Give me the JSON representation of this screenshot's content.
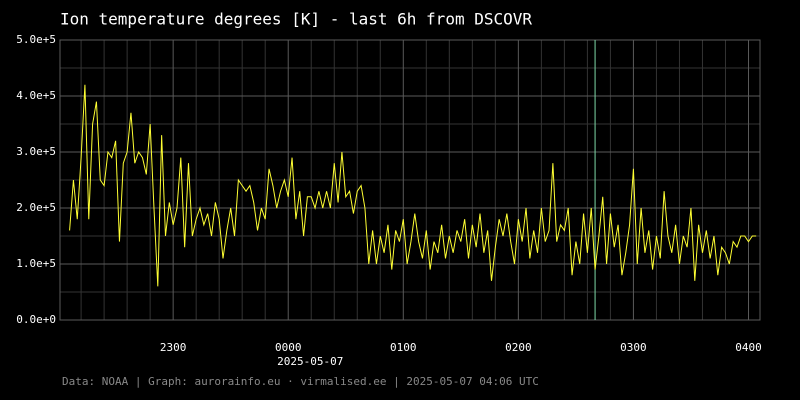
{
  "chart_data": {
    "type": "line",
    "title": "Ion temperature degrees [K] - last 6h from DSCOVR",
    "footer": "Data: NOAA | Graph: aurorainfo.eu · virmalised.ee | 2025-05-07 04:06 UTC",
    "date_label": "2025-05-07",
    "color": "#ffff33",
    "grid": true,
    "grid_color": "#5a5a5a",
    "minor_grid_color": "#333333",
    "vline": {
      "x": 160,
      "color": "#7fd9a8"
    },
    "xlim": [
      -119,
      246
    ],
    "xticks": [
      {
        "value": -60,
        "label": "2300"
      },
      {
        "value": 0,
        "label": "0000"
      },
      {
        "value": 60,
        "label": "0100"
      },
      {
        "value": 120,
        "label": "0200"
      },
      {
        "value": 180,
        "label": "0300"
      },
      {
        "value": 240,
        "label": "0400"
      }
    ],
    "x_minor_grid": [
      -108,
      -96,
      -84,
      -72,
      -48,
      -36,
      -24,
      -12,
      12,
      24,
      36,
      48,
      72,
      84,
      96,
      108,
      132,
      144,
      156,
      168,
      192,
      204,
      216,
      228
    ],
    "ylim": [
      0,
      500000
    ],
    "yticks": [
      {
        "value": 0,
        "label": "0.0e+0"
      },
      {
        "value": 100000,
        "label": "1.0e+5"
      },
      {
        "value": 200000,
        "label": "2.0e+5"
      },
      {
        "value": 300000,
        "label": "3.0e+5"
      },
      {
        "value": 400000,
        "label": "4.0e+5"
      },
      {
        "value": 500000,
        "label": "5.0e+5"
      }
    ],
    "y_minor_grid": [
      50000,
      150000,
      250000,
      350000,
      450000
    ],
    "x": [
      -114,
      -112,
      -110,
      -108,
      -106,
      -104,
      -102,
      -100,
      -98,
      -96,
      -94,
      -92,
      -90,
      -88,
      -86,
      -84,
      -82,
      -80,
      -78,
      -76,
      -74,
      -72,
      -70,
      -68,
      -66,
      -64,
      -62,
      -60,
      -58,
      -56,
      -54,
      -52,
      -50,
      -48,
      -46,
      -44,
      -42,
      -40,
      -38,
      -36,
      -34,
      -32,
      -30,
      -28,
      -26,
      -24,
      -22,
      -20,
      -18,
      -16,
      -14,
      -12,
      -10,
      -8,
      -6,
      -4,
      -2,
      0,
      2,
      4,
      6,
      8,
      10,
      12,
      14,
      16,
      18,
      20,
      22,
      24,
      26,
      28,
      30,
      32,
      34,
      36,
      38,
      40,
      42,
      44,
      46,
      48,
      50,
      52,
      54,
      56,
      58,
      60,
      62,
      64,
      66,
      68,
      70,
      72,
      74,
      76,
      78,
      80,
      82,
      84,
      86,
      88,
      90,
      92,
      94,
      96,
      98,
      100,
      102,
      104,
      106,
      108,
      110,
      112,
      114,
      116,
      118,
      120,
      122,
      124,
      126,
      128,
      130,
      132,
      134,
      136,
      138,
      140,
      142,
      144,
      146,
      148,
      150,
      152,
      154,
      156,
      158,
      160,
      162,
      164,
      166,
      168,
      170,
      172,
      174,
      176,
      178,
      180,
      182,
      184,
      186,
      188,
      190,
      192,
      194,
      196,
      198,
      200,
      202,
      204,
      206,
      208,
      210,
      212,
      214,
      216,
      218,
      220,
      222,
      224,
      226,
      228,
      230,
      232,
      234,
      236,
      238,
      240,
      242,
      244
    ],
    "values": [
      160000,
      250000,
      180000,
      290000,
      420000,
      180000,
      350000,
      390000,
      250000,
      240000,
      300000,
      290000,
      320000,
      140000,
      280000,
      300000,
      370000,
      280000,
      300000,
      290000,
      260000,
      350000,
      200000,
      60000,
      330000,
      150000,
      210000,
      170000,
      200000,
      290000,
      130000,
      280000,
      150000,
      180000,
      200000,
      170000,
      190000,
      150000,
      210000,
      180000,
      110000,
      160000,
      200000,
      150000,
      250000,
      240000,
      230000,
      240000,
      210000,
      160000,
      200000,
      180000,
      270000,
      240000,
      200000,
      230000,
      250000,
      220000,
      290000,
      180000,
      230000,
      150000,
      220000,
      220000,
      200000,
      230000,
      200000,
      230000,
      200000,
      280000,
      210000,
      300000,
      220000,
      230000,
      190000,
      230000,
      240000,
      200000,
      100000,
      160000,
      100000,
      150000,
      120000,
      170000,
      90000,
      160000,
      140000,
      180000,
      100000,
      140000,
      190000,
      140000,
      110000,
      160000,
      90000,
      140000,
      120000,
      170000,
      110000,
      150000,
      120000,
      160000,
      140000,
      180000,
      110000,
      170000,
      130000,
      190000,
      120000,
      160000,
      70000,
      130000,
      180000,
      150000,
      190000,
      140000,
      100000,
      180000,
      140000,
      200000,
      110000,
      160000,
      120000,
      200000,
      140000,
      160000,
      280000,
      140000,
      170000,
      160000,
      200000,
      80000,
      140000,
      100000,
      190000,
      120000,
      200000,
      90000,
      150000,
      220000,
      100000,
      190000,
      130000,
      170000,
      80000,
      120000,
      170000,
      270000,
      100000,
      200000,
      120000,
      160000,
      90000,
      150000,
      110000,
      230000,
      150000,
      120000,
      170000,
      100000,
      150000,
      130000,
      200000,
      70000,
      170000,
      120000,
      160000,
      110000,
      150000,
      80000,
      130000,
      120000,
      100000,
      140000,
      130000,
      150000,
      150000,
      140000,
      150000,
      150000
    ]
  }
}
